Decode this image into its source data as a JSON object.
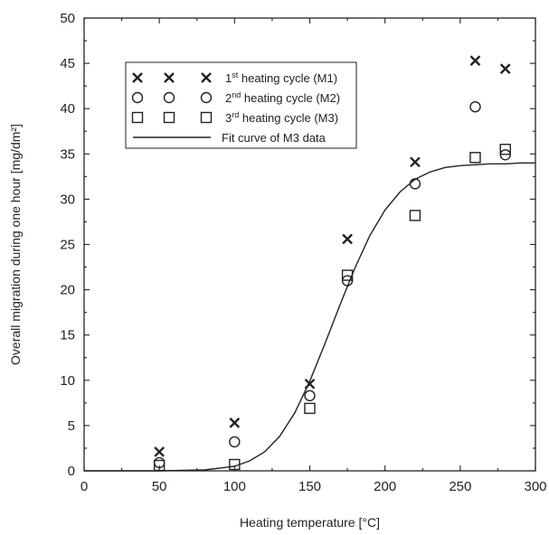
{
  "chart_data": {
    "type": "scatter",
    "xlabel": "Heating temperature [°C]",
    "ylabel": "Overall migration during one hour [mg/dm²]",
    "xlim": [
      0,
      300
    ],
    "ylim": [
      0,
      50
    ],
    "xticks": [
      0,
      50,
      100,
      150,
      200,
      250,
      300
    ],
    "yticks": [
      0,
      5,
      10,
      15,
      20,
      25,
      30,
      35,
      40,
      45,
      50
    ],
    "grid": false,
    "legend_position": "top-left",
    "series": [
      {
        "name": "1st heating cycle (M1)",
        "legend_base": "1",
        "legend_sup": "st",
        "legend_rest": " heating cycle (M1)",
        "marker": "x",
        "x": [
          50,
          100,
          150,
          175,
          220,
          260,
          280
        ],
        "y": [
          2.1,
          5.3,
          9.6,
          25.6,
          34.1,
          45.3,
          44.4
        ]
      },
      {
        "name": "2nd heating cycle (M2)",
        "legend_base": "2",
        "legend_sup": "nd",
        "legend_rest": " heating cycle (M2)",
        "marker": "circle",
        "x": [
          50,
          100,
          150,
          175,
          220,
          260,
          280
        ],
        "y": [
          0.9,
          3.2,
          8.3,
          21.0,
          31.7,
          40.2,
          34.9
        ]
      },
      {
        "name": "3rd heating cycle (M3)",
        "legend_base": "3",
        "legend_sup": "rd",
        "legend_rest": " heating cycle (M3)",
        "marker": "square",
        "x": [
          50,
          100,
          150,
          175,
          220,
          260,
          280
        ],
        "y": [
          0.6,
          0.7,
          6.9,
          21.6,
          28.2,
          34.6,
          35.5
        ]
      },
      {
        "name": "Fit curve of M3 data",
        "legend_base": "Fit curve of M3 data",
        "legend_sup": "",
        "legend_rest": "",
        "marker": "line",
        "x": [
          0,
          50,
          80,
          100,
          110,
          120,
          130,
          140,
          150,
          160,
          170,
          180,
          190,
          200,
          210,
          220,
          230,
          240,
          250,
          260,
          270,
          280,
          290,
          300
        ],
        "y": [
          0.0,
          0.0,
          0.1,
          0.5,
          1.1,
          2.1,
          3.8,
          6.4,
          9.9,
          14.0,
          18.3,
          22.4,
          26.0,
          28.8,
          30.8,
          32.2,
          33.0,
          33.5,
          33.7,
          33.8,
          33.9,
          33.9,
          34.0,
          34.0
        ]
      }
    ]
  }
}
